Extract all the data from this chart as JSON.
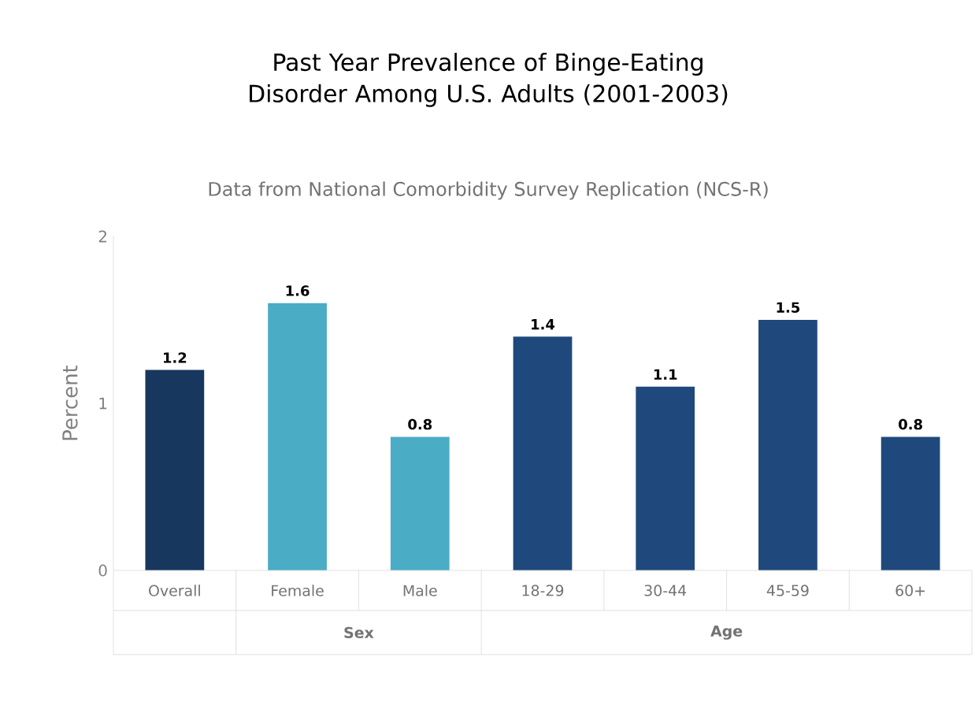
{
  "chart_data": {
    "type": "bar",
    "title": "Past Year Prevalence of Binge-Eating Disorder Among U.S. Adults (2001-2003)",
    "subtitle": "Data from National Comorbidity Survey Replication (NCS-R)",
    "ylabel": "Percent",
    "categories": [
      "Overall",
      "Female",
      "Male",
      "18-29",
      "30-44",
      "45-59",
      "60+"
    ],
    "values": [
      1.2,
      1.6,
      0.8,
      1.4,
      1.1,
      1.5,
      0.8
    ],
    "colors": [
      "#17375e",
      "#4bacc6",
      "#4bacc6",
      "#1f497d",
      "#1f497d",
      "#1f497d",
      "#1f497d"
    ],
    "ylim": [
      0,
      2
    ],
    "yticks": [
      0,
      1,
      2
    ],
    "grid": false,
    "data_labels": true,
    "annotations": [
      "Sex",
      "Age"
    ]
  }
}
